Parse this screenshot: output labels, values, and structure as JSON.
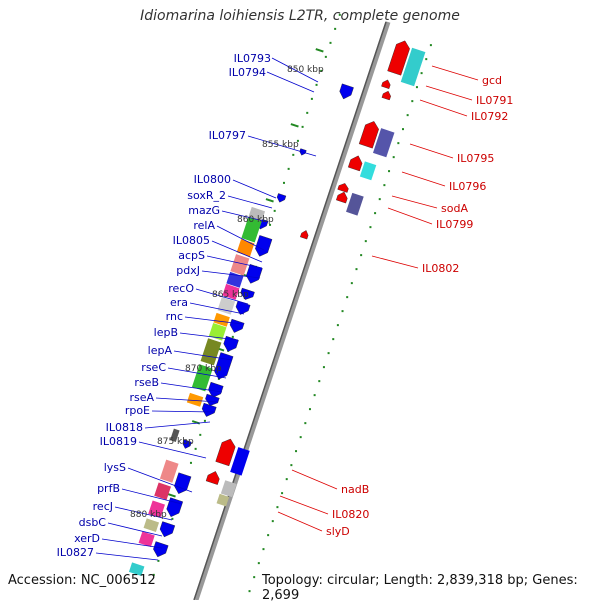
{
  "title": "Idiomarina loihiensis L2TR, complete genome",
  "footer": {
    "accession": "Accession: NC_006512",
    "topology": "Topology: circular; Length: 2,839,318 bp; Genes: 2,699"
  },
  "colors": {
    "forward_arrow": "#0000ee",
    "reverse_arrow": "#ee0000",
    "left_label": "#0000aa",
    "right_label": "#cc0000",
    "backbone": "#888888",
    "tick": "#228822"
  },
  "kbp_marks": [
    "850 kbp",
    "855 kbp",
    "860 kbp",
    "865 kbp",
    "870 kbp",
    "875 kbp",
    "880 kbp"
  ],
  "left_genes": [
    "IL0793",
    "IL0794",
    "IL0797",
    "IL0800",
    "soxR_2",
    "mazG",
    "relA",
    "IL0805",
    "acpS",
    "pdxJ",
    "recO",
    "era",
    "rnc",
    "lepB",
    "lepA",
    "rseC",
    "rseB",
    "rseA",
    "rpoE",
    "IL0818",
    "IL0819",
    "lysS",
    "prfB",
    "recJ",
    "dsbC",
    "xerD",
    "IL0827"
  ],
  "right_genes": [
    "gcd",
    "IL0791",
    "IL0792",
    "IL0795",
    "IL0796",
    "sodA",
    "IL0799",
    "IL0802",
    "nadB",
    "IL0820",
    "slyD"
  ]
}
